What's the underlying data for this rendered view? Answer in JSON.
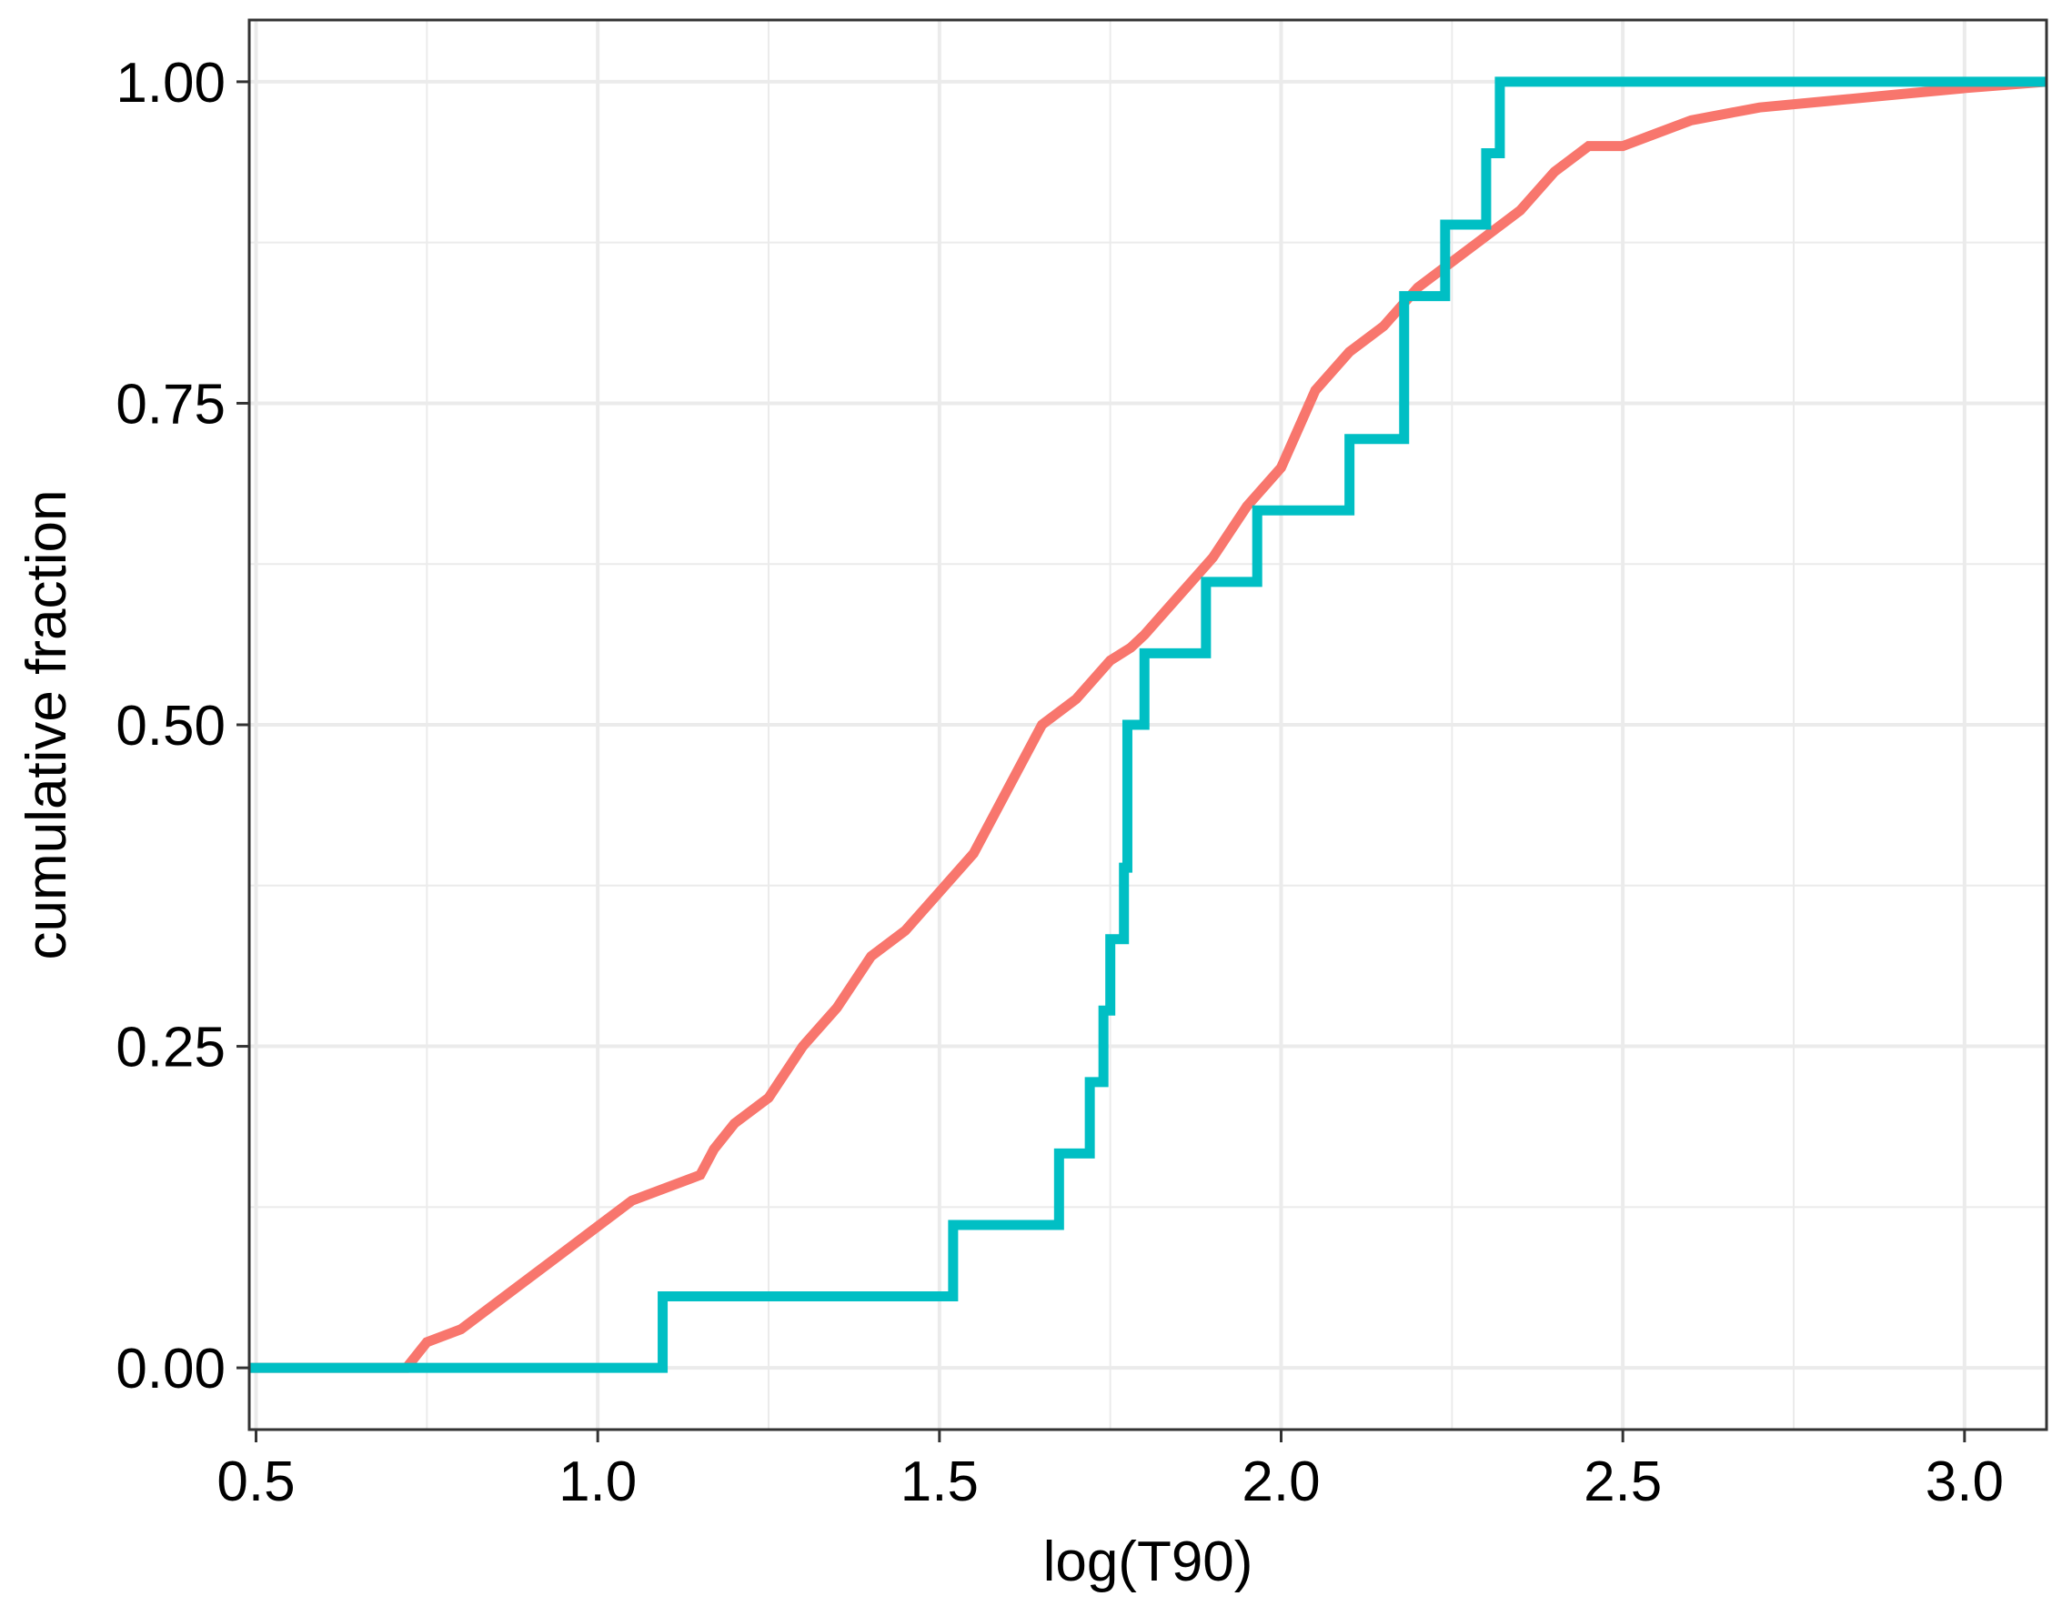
{
  "chart_data": {
    "type": "line",
    "title": "",
    "xlabel": "log(T90)",
    "ylabel": "cumulative fraction",
    "xlim": [
      0.49,
      3.12
    ],
    "ylim": [
      -0.048,
      1.048
    ],
    "x_ticks": [
      0.5,
      1.0,
      1.5,
      2.0,
      2.5,
      3.0
    ],
    "x_tick_labels": [
      "0.5",
      "1.0",
      "1.5",
      "2.0",
      "2.5",
      "3.0"
    ],
    "y_ticks": [
      0,
      0.25,
      0.5,
      0.75,
      1.0
    ],
    "y_tick_labels": [
      "0.00",
      "0.25",
      "0.50",
      "0.75",
      "1.00"
    ],
    "grid": true,
    "legend": "none",
    "series": [
      {
        "color": "#F8766D",
        "step": false,
        "x": [
          0.49,
          0.72,
          0.75,
          0.8,
          0.85,
          0.9,
          0.95,
          1.0,
          1.05,
          1.1,
          1.15,
          1.17,
          1.2,
          1.25,
          1.3,
          1.35,
          1.4,
          1.45,
          1.5,
          1.55,
          1.6,
          1.65,
          1.7,
          1.75,
          1.78,
          1.8,
          1.85,
          1.9,
          1.95,
          2.0,
          2.05,
          2.1,
          2.15,
          2.2,
          2.25,
          2.3,
          2.35,
          2.4,
          2.45,
          2.5,
          2.55,
          2.6,
          2.7,
          2.8,
          2.9,
          3.0,
          3.12
        ],
        "y": [
          0.0,
          0.0,
          0.02,
          0.03,
          0.05,
          0.07,
          0.09,
          0.11,
          0.13,
          0.14,
          0.15,
          0.17,
          0.19,
          0.21,
          0.25,
          0.28,
          0.32,
          0.34,
          0.37,
          0.4,
          0.45,
          0.5,
          0.52,
          0.55,
          0.56,
          0.57,
          0.6,
          0.63,
          0.67,
          0.7,
          0.76,
          0.79,
          0.81,
          0.84,
          0.86,
          0.88,
          0.9,
          0.93,
          0.95,
          0.95,
          0.96,
          0.97,
          0.98,
          0.985,
          0.99,
          0.995,
          1.0
        ]
      },
      {
        "color": "#00BFC4",
        "step": true,
        "x": [
          0.49,
          1.095,
          1.52,
          1.675,
          1.72,
          1.74,
          1.75,
          1.77,
          1.775,
          1.8,
          1.89,
          1.965,
          2.1,
          2.18,
          2.24,
          2.3,
          2.32,
          3.12
        ],
        "y": [
          0.0,
          0.0556,
          0.1111,
          0.1667,
          0.2222,
          0.2778,
          0.3333,
          0.3889,
          0.5,
          0.5556,
          0.6111,
          0.6667,
          0.7222,
          0.8333,
          0.8889,
          0.9444,
          1.0,
          1.0
        ]
      }
    ]
  }
}
